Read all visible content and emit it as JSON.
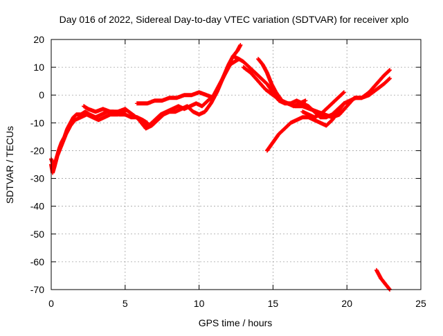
{
  "chart_data": {
    "type": "scatter",
    "title": "Day 016 of 2022, Sidereal Day-to-day VTEC variation (SDTVAR) for receiver xplo",
    "xlabel": "GPS time / hours",
    "ylabel": "SDTVAR / TECUs",
    "xlim": [
      0,
      25
    ],
    "ylim": [
      -70,
      20
    ],
    "x_ticks": [
      0,
      5,
      10,
      15,
      20,
      25
    ],
    "y_ticks": [
      -70,
      -60,
      -50,
      -40,
      -30,
      -20,
      -10,
      0,
      10,
      20
    ],
    "grid": true,
    "marker": "plus",
    "color": "#ff0000",
    "series": [
      {
        "name": "arc-1",
        "x": [
          0.0,
          0.1,
          0.3,
          0.5,
          0.7,
          0.9,
          1.1,
          1.3,
          1.5,
          1.7,
          2.0,
          2.3,
          2.6,
          3.0,
          3.4,
          3.8,
          4.2,
          4.6,
          5.0,
          5.4,
          5.8,
          6.2,
          6.5
        ],
        "y": [
          -25,
          -28,
          -24,
          -20,
          -17,
          -15,
          -12,
          -10,
          -8,
          -7,
          -7,
          -6,
          -7,
          -8,
          -7,
          -6,
          -6,
          -7,
          -7,
          -8,
          -8,
          -9,
          -10
        ]
      },
      {
        "name": "arc-2",
        "x": [
          0.0,
          0.2,
          0.4,
          0.7,
          1.0,
          1.3,
          1.6,
          2.0,
          2.4,
          2.8,
          3.2,
          3.6,
          4.0,
          4.5,
          5.0
        ],
        "y": [
          -23,
          -26,
          -22,
          -18,
          -14,
          -11,
          -9,
          -8,
          -7,
          -8,
          -9,
          -8,
          -7,
          -7,
          -6
        ]
      },
      {
        "name": "arc-3",
        "x": [
          2.2,
          2.5,
          3.0,
          3.5,
          4.0,
          4.5,
          5.0,
          5.5,
          6.0,
          6.3,
          6.6,
          7.0,
          7.4,
          7.8,
          8.2,
          8.6,
          9.0,
          9.4,
          9.8,
          10.2,
          10.6,
          11.0,
          11.4,
          11.8,
          12.1,
          12.4,
          12.7
        ],
        "y": [
          -4,
          -5,
          -6,
          -5,
          -6,
          -6,
          -5,
          -7,
          -9,
          -10,
          -11,
          -9,
          -7,
          -6,
          -5,
          -4,
          -5,
          -4,
          -3,
          -4,
          -2,
          0,
          4,
          8,
          11,
          12,
          13
        ]
      },
      {
        "name": "arc-4",
        "x": [
          5.8,
          6.1,
          6.4,
          6.8,
          7.2,
          7.6,
          8.0,
          8.4,
          8.8,
          9.2,
          9.6,
          10.0,
          10.4,
          10.8,
          11.2,
          11.6,
          12.0,
          12.3,
          12.6,
          12.8
        ],
        "y": [
          -8,
          -10,
          -12,
          -11,
          -9,
          -7,
          -6,
          -6,
          -5,
          -4,
          -6,
          -7,
          -6,
          -3,
          1,
          6,
          11,
          14,
          16,
          18
        ]
      },
      {
        "name": "arc-5",
        "x": [
          5.8,
          6.5,
          7.0,
          7.5,
          8.0,
          8.5,
          9.0,
          9.5,
          10.0,
          10.5,
          11.0
        ],
        "y": [
          -3,
          -3,
          -2,
          -2,
          -1,
          -1,
          0,
          0,
          1,
          0,
          -1
        ]
      },
      {
        "name": "arc-6",
        "x": [
          12.3,
          12.7,
          13.0,
          13.4,
          13.8,
          14.2,
          14.6,
          15.0,
          15.4,
          15.8,
          16.2,
          16.6,
          17.0,
          17.4,
          17.8,
          18.2,
          18.6,
          19.0,
          19.4,
          19.8,
          20.2,
          20.6,
          21.0,
          21.5,
          22.0,
          22.5,
          22.9
        ],
        "y": [
          14,
          13,
          12,
          10,
          8,
          6,
          4,
          1,
          -2,
          -3,
          -3,
          -2,
          -3,
          -4,
          -6,
          -8,
          -8,
          -7,
          -5,
          -3,
          -2,
          -1,
          -1,
          1,
          4,
          7,
          9
        ]
      },
      {
        "name": "arc-7",
        "x": [
          13.0,
          13.5,
          14.0,
          14.5,
          15.0,
          15.5,
          16.0,
          16.5,
          17.0,
          17.5,
          18.0,
          18.5,
          19.0,
          19.5,
          20.0,
          20.5,
          21.0,
          21.5,
          22.0,
          22.5,
          22.9
        ],
        "y": [
          10,
          8,
          5,
          2,
          0,
          -2,
          -3,
          -4,
          -4,
          -5,
          -6,
          -7,
          -8,
          -7,
          -4,
          -1,
          -1,
          0,
          2,
          4,
          6
        ]
      },
      {
        "name": "arc-8",
        "x": [
          14.0,
          14.3,
          14.6,
          14.9,
          15.2,
          15.6,
          16.0,
          16.4,
          16.8,
          17.2
        ],
        "y": [
          13,
          11,
          8,
          4,
          1,
          -2,
          -3,
          -4,
          -3,
          -2
        ]
      },
      {
        "name": "arc-9",
        "x": [
          14.6,
          15.0,
          15.4,
          15.8,
          16.2,
          16.6,
          17.0,
          17.4,
          17.8,
          18.2,
          18.6,
          19.0,
          19.4,
          19.8
        ],
        "y": [
          -20,
          -17,
          -14,
          -12,
          -10,
          -9,
          -8,
          -8,
          -9,
          -10,
          -11,
          -9,
          -6,
          -3
        ]
      },
      {
        "name": "arc-10",
        "x": [
          17.0,
          17.4,
          17.8,
          18.2,
          18.6,
          19.0,
          19.4,
          19.8
        ],
        "y": [
          -6,
          -7,
          -8,
          -7,
          -5,
          -3,
          -1,
          1
        ]
      },
      {
        "name": "arc-11",
        "x": [
          22.0,
          22.3,
          22.6,
          22.9
        ],
        "y": [
          -63,
          -66,
          -68,
          -70
        ]
      }
    ]
  }
}
